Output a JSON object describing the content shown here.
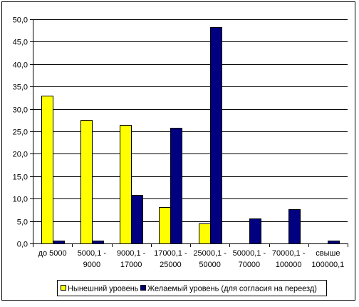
{
  "chart_data": {
    "type": "bar",
    "categories": [
      [
        "до 5000"
      ],
      [
        "5000,1 -",
        "9000"
      ],
      [
        "9000,1 -",
        "17000"
      ],
      [
        "17000,1 -",
        "25000"
      ],
      [
        "25000,1 -",
        "50000"
      ],
      [
        "50000,1 -",
        "70000"
      ],
      [
        "70000,1 -",
        "100000"
      ],
      [
        "свыше",
        "100000,1"
      ]
    ],
    "series": [
      {
        "name": "Нынешний уровень",
        "color": "#FFFF00",
        "values": [
          33.0,
          27.6,
          26.5,
          8.2,
          4.5,
          0,
          0,
          0
        ]
      },
      {
        "name": "Желаемый уровень (для согласия на переезд)",
        "color": "#000080",
        "values": [
          0.6,
          0.6,
          10.9,
          25.8,
          48.3,
          5.6,
          7.7,
          0.6
        ]
      }
    ],
    "yticks": [
      "0,0",
      "5,0",
      "10,0",
      "15,0",
      "20,0",
      "25,0",
      "30,0",
      "35,0",
      "40,0",
      "45,0",
      "50,0"
    ],
    "ylim": [
      0,
      50
    ],
    "grid": true,
    "legend_position": "bottom",
    "title": "",
    "xlabel": "",
    "ylabel": ""
  }
}
